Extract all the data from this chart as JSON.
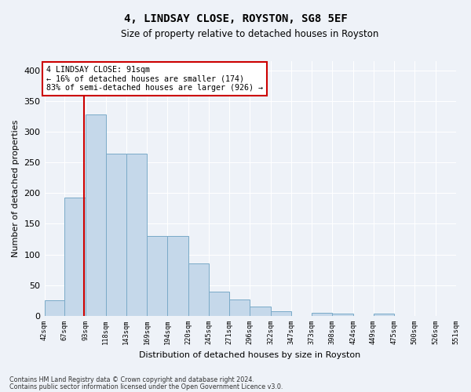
{
  "title": "4, LINDSAY CLOSE, ROYSTON, SG8 5EF",
  "subtitle": "Size of property relative to detached houses in Royston",
  "xlabel": "Distribution of detached houses by size in Royston",
  "ylabel": "Number of detached properties",
  "footnote1": "Contains HM Land Registry data © Crown copyright and database right 2024.",
  "footnote2": "Contains public sector information licensed under the Open Government Licence v3.0.",
  "annotation_line1": "4 LINDSAY CLOSE: 91sqm",
  "annotation_line2": "← 16% of detached houses are smaller (174)",
  "annotation_line3": "83% of semi-detached houses are larger (926) →",
  "property_size": 91,
  "bar_color": "#c5d8ea",
  "bar_edge_color": "#7aaac8",
  "vline_color": "#cc0000",
  "background_color": "#eef2f8",
  "grid_color": "#ffffff",
  "bin_edges": [
    42,
    67,
    93,
    118,
    143,
    169,
    194,
    220,
    245,
    271,
    296,
    322,
    347,
    373,
    398,
    424,
    449,
    475,
    500,
    526,
    551
  ],
  "bin_labels": [
    "42sqm",
    "67sqm",
    "93sqm",
    "118sqm",
    "143sqm",
    "169sqm",
    "194sqm",
    "220sqm",
    "245sqm",
    "271sqm",
    "296sqm",
    "322sqm",
    "347sqm",
    "373sqm",
    "398sqm",
    "424sqm",
    "449sqm",
    "475sqm",
    "500sqm",
    "526sqm",
    "551sqm"
  ],
  "counts": [
    25,
    193,
    328,
    264,
    264,
    130,
    130,
    86,
    40,
    27,
    15,
    8,
    0,
    5,
    3,
    0,
    4,
    0,
    0,
    0,
    3
  ],
  "yticks": [
    0,
    50,
    100,
    150,
    200,
    250,
    300,
    350,
    400
  ],
  "ylim": [
    0,
    415
  ]
}
